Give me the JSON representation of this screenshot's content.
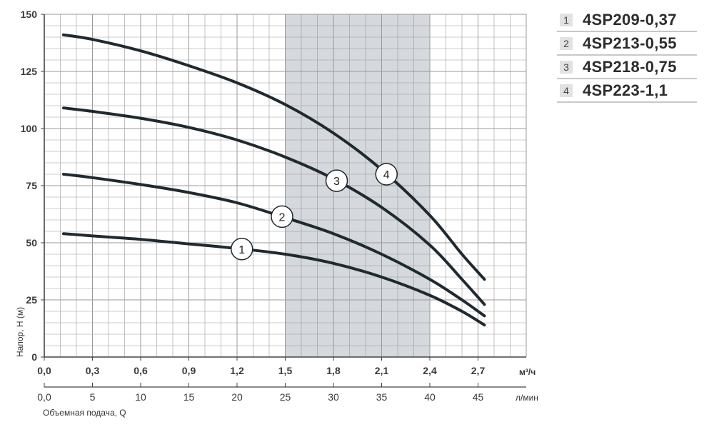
{
  "chart_data": {
    "type": "line",
    "title": "",
    "ylabel": "Напор, H (м)",
    "xlabel": "Объемная подача, Q",
    "x_unit": "м³/ч",
    "x2_unit": "л/мин",
    "ylim": [
      0,
      150
    ],
    "xlim": [
      0,
      3.0
    ],
    "y_ticks": [
      "0",
      "25",
      "50",
      "75",
      "100",
      "125",
      "150"
    ],
    "y_tick_values": [
      0,
      25,
      50,
      75,
      100,
      125,
      150
    ],
    "x_ticks": [
      "0,0",
      "0,3",
      "0,6",
      "0,9",
      "1,2",
      "1,5",
      "1,8",
      "2,1",
      "2,4",
      "2,7"
    ],
    "x_tick_values": [
      0,
      0.3,
      0.6,
      0.9,
      1.2,
      1.5,
      1.8,
      2.1,
      2.4,
      2.7
    ],
    "x2_ticks": [
      "0,0",
      "5",
      "10",
      "15",
      "20",
      "25",
      "30",
      "35",
      "40",
      "45"
    ],
    "x2_tick_values": [
      0,
      5,
      10,
      15,
      20,
      25,
      30,
      35,
      40,
      45
    ],
    "grid": true,
    "shaded_region": {
      "x_start": 1.5,
      "x_end": 2.4
    },
    "series": [
      {
        "name": "4SP209-0,37",
        "marker": "1",
        "marker_x": 1.23,
        "x": [
          0.12,
          0.3,
          0.6,
          0.9,
          1.2,
          1.5,
          1.8,
          2.1,
          2.4,
          2.6,
          2.74
        ],
        "y": [
          54,
          53,
          51.5,
          49.5,
          47.5,
          45,
          41,
          35,
          27,
          20,
          14
        ]
      },
      {
        "name": "4SP213-0,55",
        "marker": "2",
        "marker_x": 1.48,
        "x": [
          0.12,
          0.3,
          0.6,
          0.9,
          1.2,
          1.5,
          1.8,
          2.1,
          2.4,
          2.6,
          2.74
        ],
        "y": [
          80,
          78.5,
          75.5,
          72,
          67.5,
          61,
          54,
          45,
          34,
          25,
          18
        ]
      },
      {
        "name": "4SP218-0,75",
        "marker": "3",
        "marker_x": 1.82,
        "x": [
          0.12,
          0.3,
          0.6,
          0.9,
          1.2,
          1.5,
          1.8,
          2.1,
          2.4,
          2.6,
          2.74
        ],
        "y": [
          109,
          107.5,
          104.5,
          100.5,
          95,
          87.5,
          78,
          65.5,
          49,
          34,
          23
        ]
      },
      {
        "name": "4SP223-1,1",
        "marker": "4",
        "marker_x": 2.13,
        "x": [
          0.12,
          0.3,
          0.6,
          0.9,
          1.2,
          1.5,
          1.8,
          2.1,
          2.4,
          2.6,
          2.74
        ],
        "y": [
          141,
          139,
          134,
          127.5,
          120,
          110.5,
          98,
          82,
          62,
          45,
          34
        ]
      }
    ]
  },
  "legend": [
    {
      "num": "1",
      "label": "4SP209-0,37"
    },
    {
      "num": "2",
      "label": "4SP213-0,55"
    },
    {
      "num": "3",
      "label": "4SP218-0,75"
    },
    {
      "num": "4",
      "label": "4SP223-1,1"
    }
  ],
  "colors": {
    "line": "#1f2a30",
    "grid": "#9a9a9a",
    "shade": "#d5d8dc",
    "marker_fill": "#ffffff"
  }
}
